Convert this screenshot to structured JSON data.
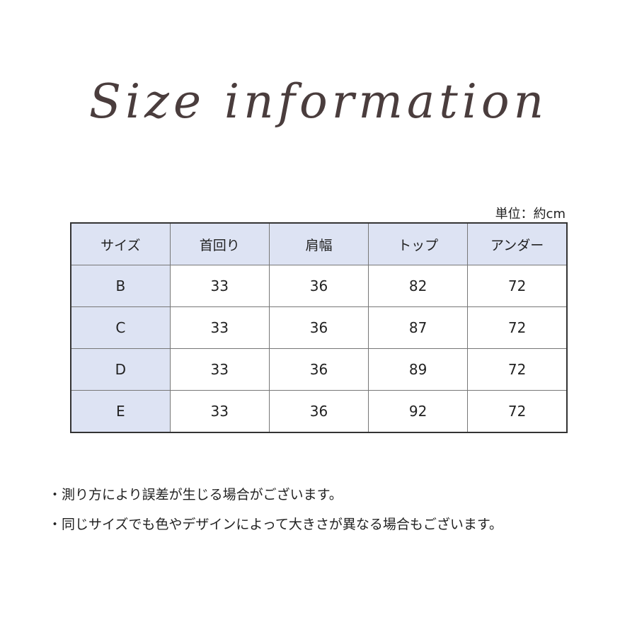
{
  "title": "Size information",
  "unit_label": "単位：約cm",
  "table": {
    "headers": [
      "サイズ",
      "首回り",
      "肩幅",
      "トップ",
      "アンダー"
    ],
    "rows": [
      [
        "B",
        "33",
        "36",
        "82",
        "72"
      ],
      [
        "C",
        "33",
        "36",
        "87",
        "72"
      ],
      [
        "D",
        "33",
        "36",
        "89",
        "72"
      ],
      [
        "E",
        "33",
        "36",
        "92",
        "72"
      ]
    ]
  },
  "notes": [
    "・測り方により誤差が生じる場合がございます。",
    "・同じサイズでも色やデザインによって大きさが異なる場合もございます。"
  ],
  "colors": {
    "header_fill": "#dde3f3",
    "title": "#4a3d3d"
  }
}
